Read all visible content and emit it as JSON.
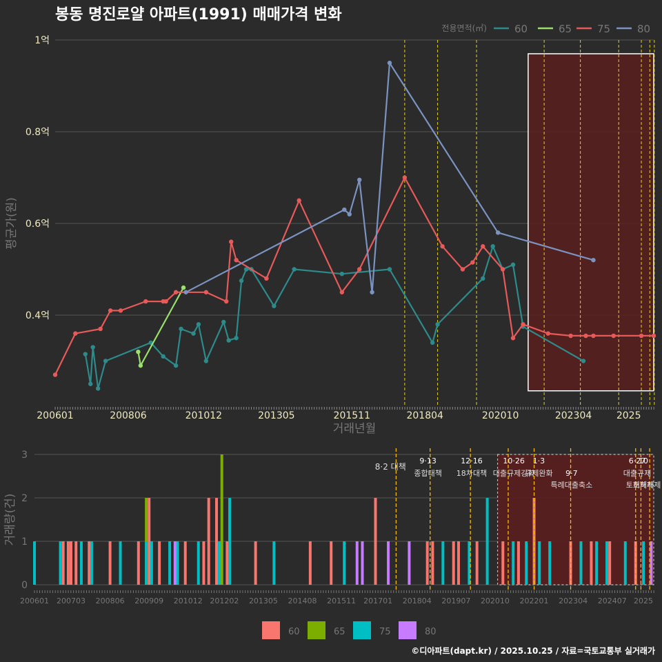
{
  "title": "봉동 명진로얄 아파트(1991) 매매가격 변화",
  "footer": "©디아파트(dapt.kr) / 2025.10.25 / 자료=국토교통부 실거래가",
  "colors": {
    "background": "#2b2b2b",
    "panel": "#2b2b2b",
    "grid": "#555555",
    "axis_text": "#f0eac0",
    "muted_text": "#777777",
    "title": "#ffffff",
    "vline": "#e6d21c",
    "event_line": "#f5b915",
    "highlight_fill": "#5a1e1e",
    "highlight_border": "#ffffff"
  },
  "chart_data": [
    {
      "type": "line",
      "title": "봉동 명진로얄 아파트(1991) 매매가격 변화",
      "xlabel": "거래년월",
      "ylabel": "평균가(원)",
      "ylim": [
        0.2,
        1.0
      ],
      "y_ticks": [
        {
          "v": 0.4,
          "label": "0.4억"
        },
        {
          "v": 0.6,
          "label": "0.6억"
        },
        {
          "v": 0.8,
          "label": "0.8억"
        },
        {
          "v": 1.0,
          "label": "1억"
        }
      ],
      "x_ticks": [
        {
          "t": 2006.0,
          "label": "200601"
        },
        {
          "t": 2008.42,
          "label": "200806"
        },
        {
          "t": 2010.92,
          "label": "201012"
        },
        {
          "t": 2013.33,
          "label": "201305"
        },
        {
          "t": 2015.83,
          "label": "201511"
        },
        {
          "t": 2018.25,
          "label": "201804"
        },
        {
          "t": 2020.75,
          "label": "202010"
        },
        {
          "t": 2023.17,
          "label": "202304"
        },
        {
          "t": 2025.0,
          "label": "2025"
        }
      ],
      "xlim": [
        2006.0,
        2025.83
      ],
      "legend_title": "전용면적(㎡)",
      "legend_position": "top-right",
      "highlight": {
        "x0": 2021.67,
        "x1": 2025.83,
        "y0": 0.235,
        "y1": 0.97
      },
      "vlines": [
        2017.58,
        2018.67,
        2019.96,
        2022.2,
        2023.4,
        2024.67,
        2025.42,
        2025.7,
        2025.85
      ],
      "series": [
        {
          "name": "60",
          "color": "#2e8b8b",
          "x": [
            2007.0,
            2007.17,
            2007.25,
            2007.42,
            2007.67,
            2009.17,
            2009.58,
            2010.0,
            2010.17,
            2010.58,
            2010.75,
            2011.0,
            2011.58,
            2011.75,
            2012.0,
            2012.17,
            2012.33,
            2012.5,
            2013.25,
            2013.92,
            2015.5,
            2017.08,
            2018.5,
            2018.67,
            2020.17,
            2020.5,
            2020.83,
            2021.17,
            2021.5,
            2023.5
          ],
          "y": [
            0.315,
            0.25,
            0.33,
            0.24,
            0.3,
            0.34,
            0.31,
            0.29,
            0.37,
            0.36,
            0.38,
            0.3,
            0.385,
            0.345,
            0.35,
            0.475,
            0.5,
            0.5,
            0.42,
            0.5,
            0.49,
            0.5,
            0.34,
            0.38,
            0.48,
            0.55,
            0.5,
            0.51,
            0.375,
            0.3
          ]
        },
        {
          "name": "65",
          "color": "#9ae06b",
          "x": [
            2008.75,
            2008.83,
            2010.25
          ],
          "y": [
            0.32,
            0.29,
            0.46
          ]
        },
        {
          "name": "75",
          "color": "#e85a5a",
          "x": [
            2006.0,
            2006.67,
            2007.5,
            2007.83,
            2008.17,
            2009.0,
            2009.58,
            2009.67,
            2010.0,
            2011.0,
            2011.67,
            2011.83,
            2012.0,
            2013.0,
            2014.08,
            2015.5,
            2016.08,
            2017.58,
            2018.83,
            2019.5,
            2019.83,
            2020.17,
            2020.83,
            2021.17,
            2021.5,
            2022.33,
            2023.08,
            2023.58,
            2023.83,
            2024.5,
            2025.42,
            2025.83
          ],
          "y": [
            0.27,
            0.36,
            0.37,
            0.41,
            0.41,
            0.43,
            0.43,
            0.43,
            0.45,
            0.45,
            0.43,
            0.56,
            0.52,
            0.48,
            0.65,
            0.45,
            0.5,
            0.7,
            0.55,
            0.5,
            0.515,
            0.55,
            0.5,
            0.35,
            0.38,
            0.36,
            0.355,
            0.355,
            0.355,
            0.355,
            0.355,
            0.355
          ]
        },
        {
          "name": "80",
          "color": "#7b93c0",
          "x": [
            2010.33,
            2015.58,
            2015.75,
            2016.08,
            2016.5,
            2017.08,
            2020.67,
            2023.83
          ],
          "y": [
            0.45,
            0.63,
            0.62,
            0.695,
            0.45,
            0.95,
            0.58,
            0.52
          ]
        }
      ]
    },
    {
      "type": "bar",
      "ylabel": "거래량(건)",
      "ylim": [
        0,
        3
      ],
      "y_ticks": [
        0,
        1,
        2,
        3
      ],
      "x_ticks": [
        "200601",
        "200703",
        "200806",
        "200909",
        "201012",
        "201202",
        "201305",
        "201408",
        "201511",
        "201701",
        "201804",
        "201907",
        "202010",
        "202201",
        "202304",
        "202407",
        "2025"
      ],
      "x_ticks_t": [
        2006.0,
        2007.17,
        2008.42,
        2009.67,
        2010.92,
        2012.08,
        2013.33,
        2014.58,
        2015.83,
        2017.0,
        2018.25,
        2019.5,
        2020.75,
        2022.0,
        2023.25,
        2024.5,
        2025.5
      ],
      "xlim": [
        2006.0,
        2025.83
      ],
      "highlight": {
        "x0": 2020.83,
        "x1": 2025.83,
        "y0": 0,
        "y1": 3
      },
      "series": [
        {
          "name": "60",
          "color": "#f8766d",
          "x": [
            2006.92,
            2007.08,
            2007.17,
            2007.33,
            2007.75,
            2008.42,
            2009.33,
            2009.67,
            2010.0,
            2010.83,
            2011.42,
            2011.58,
            2011.83,
            2012.17,
            2013.08,
            2014.83,
            2015.5,
            2016.92,
            2018.58,
            2018.75,
            2019.42,
            2019.58,
            2020.17,
            2021.0,
            2021.5,
            2022.0,
            2023.17,
            2023.83,
            2024.42,
            2025.25
          ],
          "y": [
            1,
            1,
            1,
            1,
            1,
            1,
            1,
            2,
            1,
            1,
            1,
            2,
            2,
            1,
            1,
            1,
            1,
            2,
            1,
            1,
            1,
            1,
            1,
            1,
            1,
            2,
            1,
            1,
            1,
            1
          ]
        },
        {
          "name": "65",
          "color": "#7cae00",
          "x": [
            2009.58,
            2012.0
          ],
          "y": [
            2,
            3
          ]
        },
        {
          "name": "75",
          "color": "#00bfc4",
          "x": [
            2006.0,
            2006.83,
            2007.5,
            2007.83,
            2008.75,
            2009.58,
            2009.75,
            2010.33,
            2010.58,
            2011.25,
            2011.92,
            2012.25,
            2013.67,
            2015.92,
            2019.08,
            2019.92,
            2020.5,
            2021.33,
            2021.75,
            2022.17,
            2022.5,
            2023.5,
            2024.0,
            2024.33,
            2024.92,
            2025.5
          ],
          "y": [
            1,
            1,
            1,
            1,
            1,
            1,
            1,
            1,
            1,
            1,
            1,
            2,
            1,
            1,
            1,
            1,
            2,
            1,
            1,
            1,
            1,
            1,
            1,
            1,
            1,
            1
          ]
        },
        {
          "name": "80",
          "color": "#c77cff",
          "x": [
            2010.5,
            2016.33,
            2016.5,
            2017.33,
            2018.0,
            2025.75
          ],
          "y": [
            1,
            1,
            1,
            1,
            1,
            1
          ]
        }
      ],
      "events": [
        {
          "t": 2017.58,
          "date": "8·2",
          "label": "대책"
        },
        {
          "t": 2018.67,
          "date": "9·13",
          "label": "종합대책"
        },
        {
          "t": 2019.96,
          "date": "12·16",
          "label": "18차대책"
        },
        {
          "t": 2021.17,
          "date": "10·26",
          "label": "대출규제강화"
        },
        {
          "t": 2022.0,
          "date": "1·3",
          "label": "규제완화"
        },
        {
          "t": 2023.17,
          "date": "9·7",
          "label": "특례대출축소"
        },
        {
          "t": 2025.25,
          "date": "6·27",
          "label": "대출규제"
        },
        {
          "t": 2025.42,
          "date": "10",
          "label": "토허제"
        },
        {
          "t": 2025.7,
          "date": "",
          "label": "토허제해제"
        }
      ]
    }
  ]
}
